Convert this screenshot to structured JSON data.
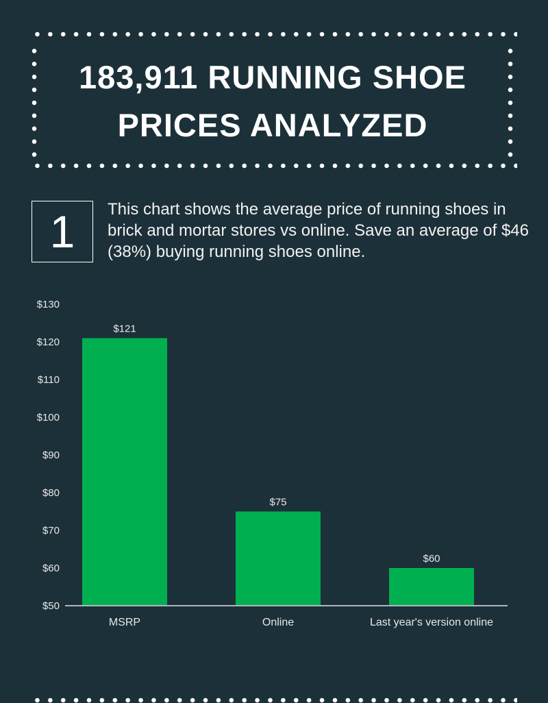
{
  "header": {
    "title_line1": "183,911 RUNNING SHOE",
    "title_line2": "PRICES ANALYZED"
  },
  "section": {
    "number": "1",
    "description": "This chart shows the average price of running shoes in brick and mortar stores vs online. Save an average of $46 (38%) buying running shoes online."
  },
  "colors": {
    "background": "#1c3039",
    "bar": "#00b050",
    "axis": "#b0b8bb"
  },
  "chart_data": {
    "type": "bar",
    "title": "",
    "xlabel": "",
    "ylabel": "",
    "categories": [
      "MSRP",
      "Online",
      "Last year's version online"
    ],
    "values": [
      121,
      75,
      60
    ],
    "data_labels": [
      "$121",
      "$75",
      "$60"
    ],
    "ylim": [
      50,
      130
    ],
    "yticks": [
      50,
      60,
      70,
      80,
      90,
      100,
      110,
      120,
      130
    ],
    "ytick_labels": [
      "$50",
      "$60",
      "$70",
      "$80",
      "$90",
      "$100",
      "$110",
      "$120",
      "$130"
    ],
    "grid": false,
    "legend": "none"
  }
}
